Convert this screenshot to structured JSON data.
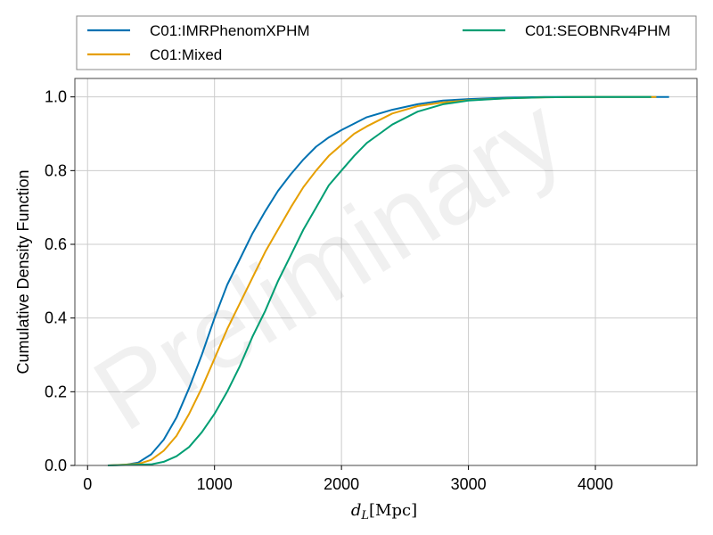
{
  "chart_data": {
    "type": "line",
    "xlabel": "d_L[Mpc]",
    "ylabel": "Cumulative Density Function",
    "xlim": [
      -100,
      4800
    ],
    "ylim": [
      0,
      1.05
    ],
    "xticks": [
      0,
      1000,
      2000,
      3000,
      4000
    ],
    "xtick_labels": [
      "0",
      "1000",
      "2000",
      "3000",
      "4000"
    ],
    "yticks": [
      0.0,
      0.2,
      0.4,
      0.6,
      0.8,
      1.0
    ],
    "ytick_labels": [
      "0.0",
      "0.2",
      "0.4",
      "0.6",
      "0.8",
      "1.0"
    ],
    "grid": true,
    "legend_placement": "top, outside plot",
    "watermark": "Preliminary",
    "series": [
      {
        "name": "C01:IMRPhenomXPHM",
        "color": "#0072b2",
        "x": [
          160,
          300,
          400,
          500,
          600,
          700,
          800,
          900,
          1000,
          1100,
          1200,
          1300,
          1400,
          1500,
          1600,
          1700,
          1800,
          1900,
          2000,
          2200,
          2400,
          2600,
          2800,
          3000,
          3300,
          3600,
          4000,
          4400,
          4580
        ],
        "y": [
          0.0,
          0.002,
          0.008,
          0.03,
          0.07,
          0.13,
          0.21,
          0.3,
          0.4,
          0.49,
          0.56,
          0.63,
          0.69,
          0.745,
          0.79,
          0.83,
          0.865,
          0.89,
          0.91,
          0.945,
          0.965,
          0.98,
          0.99,
          0.994,
          0.998,
          1.0,
          1.0,
          1.0,
          1.0
        ]
      },
      {
        "name": "C01:Mixed",
        "color": "#e69f00",
        "x": [
          160,
          400,
          500,
          600,
          700,
          800,
          900,
          1000,
          1100,
          1200,
          1300,
          1400,
          1500,
          1600,
          1700,
          1800,
          1900,
          2000,
          2100,
          2200,
          2400,
          2600,
          2800,
          3000,
          3300,
          3600,
          4000,
          4200,
          4480
        ],
        "y": [
          0.0,
          0.004,
          0.015,
          0.04,
          0.08,
          0.14,
          0.21,
          0.29,
          0.37,
          0.44,
          0.51,
          0.58,
          0.64,
          0.7,
          0.755,
          0.8,
          0.84,
          0.87,
          0.9,
          0.92,
          0.955,
          0.975,
          0.985,
          0.991,
          0.996,
          0.999,
          1.0,
          1.0,
          1.0
        ]
      },
      {
        "name": "C01:SEOBNRv4PHM",
        "color": "#009e73",
        "x": [
          160,
          500,
          600,
          700,
          800,
          900,
          1000,
          1100,
          1200,
          1300,
          1400,
          1500,
          1600,
          1700,
          1800,
          1900,
          2000,
          2100,
          2200,
          2300,
          2400,
          2600,
          2800,
          3000,
          3300,
          3600,
          4000,
          4200,
          4440
        ],
        "y": [
          0.0,
          0.003,
          0.01,
          0.025,
          0.05,
          0.09,
          0.14,
          0.2,
          0.27,
          0.35,
          0.42,
          0.5,
          0.57,
          0.64,
          0.7,
          0.76,
          0.8,
          0.84,
          0.875,
          0.9,
          0.925,
          0.96,
          0.98,
          0.99,
          0.996,
          0.999,
          1.0,
          1.0,
          1.0
        ]
      }
    ]
  }
}
